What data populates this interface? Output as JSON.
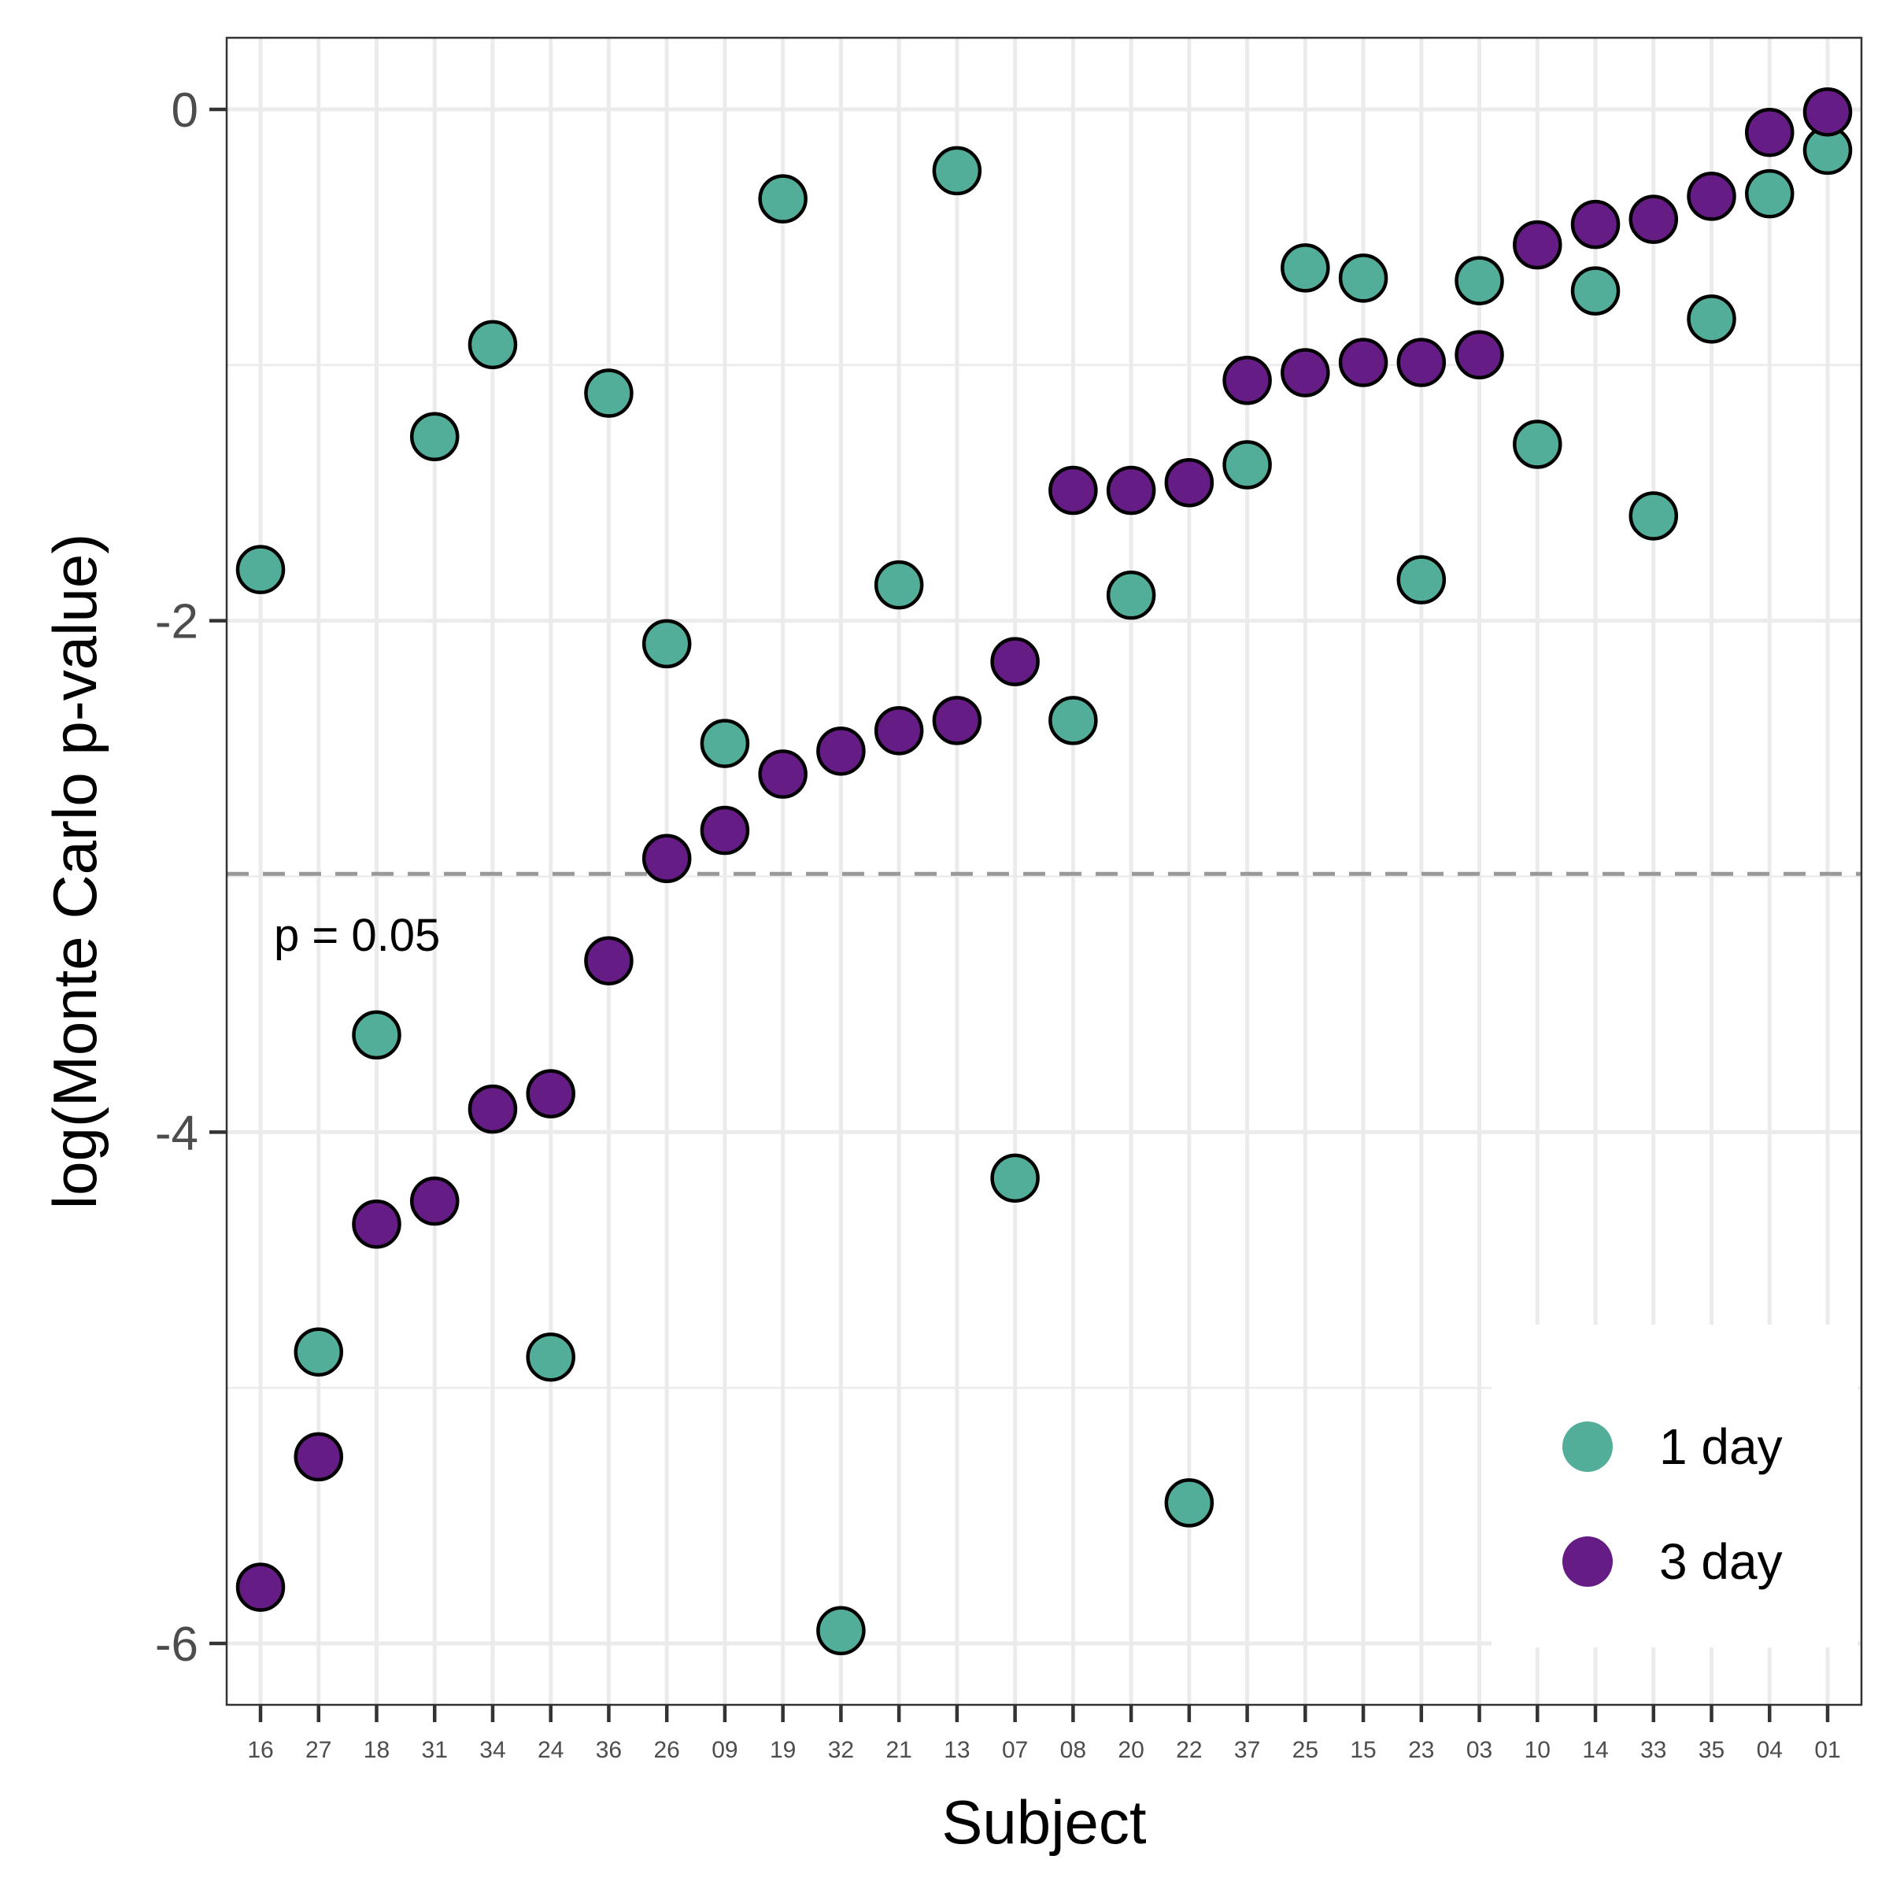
{
  "chart_data": {
    "type": "scatter",
    "xlabel": "Subject",
    "ylabel": "log(Monte Carlo p-value)",
    "categories": [
      "16",
      "27",
      "18",
      "31",
      "34",
      "24",
      "36",
      "26",
      "09",
      "19",
      "32",
      "21",
      "13",
      "07",
      "08",
      "20",
      "22",
      "37",
      "25",
      "15",
      "23",
      "03",
      "10",
      "14",
      "33",
      "35",
      "04",
      "01"
    ],
    "ylim": [
      -6.24,
      0.28
    ],
    "yticks": [
      0,
      -2,
      -4,
      -6
    ],
    "ytick_labels": [
      "0",
      "-2",
      "-4",
      "-6"
    ],
    "grid": true,
    "legend_position": "bottom-right",
    "reference_line": {
      "y": -2.99,
      "style": "dashed",
      "color": "#999999",
      "label": "p = 0.05"
    },
    "series": [
      {
        "name": "1 day",
        "color": "#52AE99",
        "values": [
          -1.8,
          -4.86,
          -3.62,
          -1.28,
          -0.92,
          -4.88,
          -1.11,
          -2.09,
          -2.48,
          -0.35,
          -5.95,
          -1.86,
          -0.24,
          -4.18,
          -2.39,
          -1.9,
          -5.45,
          -1.39,
          -0.62,
          -0.66,
          -1.84,
          -0.67,
          -1.31,
          -0.71,
          -1.59,
          -0.82,
          -0.33,
          -0.16
        ]
      },
      {
        "name": "3 day",
        "color": "#661C85",
        "values": [
          -5.78,
          -5.27,
          -4.36,
          -4.27,
          -3.91,
          -3.85,
          -3.33,
          -2.93,
          -2.82,
          -2.6,
          -2.51,
          -2.43,
          -2.39,
          -2.16,
          -1.49,
          -1.49,
          -1.46,
          -1.06,
          -1.03,
          -0.99,
          -0.99,
          -0.96,
          -0.53,
          -0.45,
          -0.43,
          -0.34,
          -0.09,
          -0.01
        ]
      }
    ]
  }
}
